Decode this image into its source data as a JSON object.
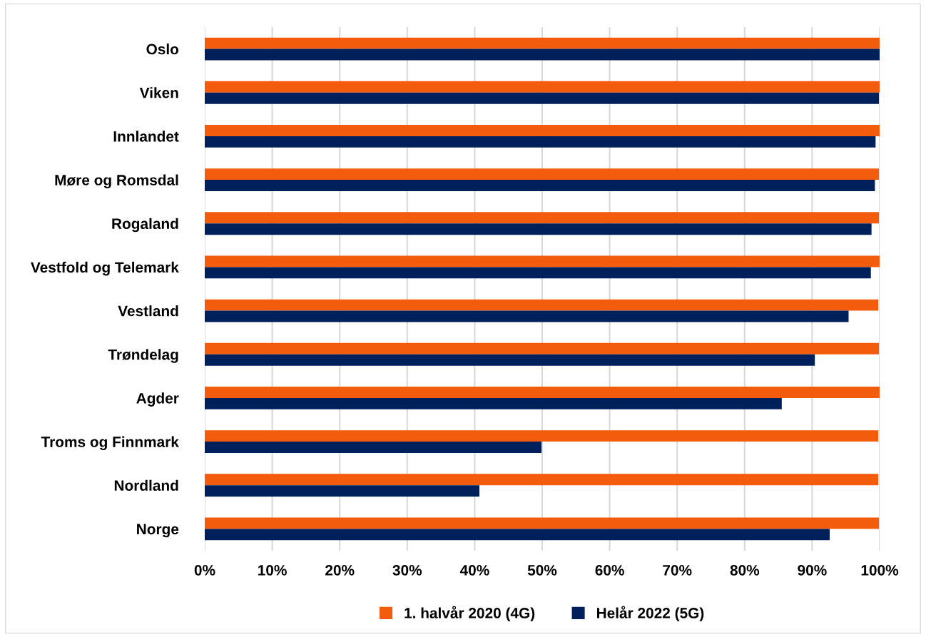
{
  "chart_data": {
    "type": "bar",
    "orientation": "horizontal",
    "categories": [
      "Oslo",
      "Viken",
      "Innlandet",
      "Møre og Romsdal",
      "Rogaland",
      "Vestfold og Telemark",
      "Vestland",
      "Trøndelag",
      "Agder",
      "Troms og Finnmark",
      "Nordland",
      "Norge"
    ],
    "series": [
      {
        "name": "1. halvår 2020 (4G)",
        "color": "#f25c0c",
        "values": [
          100,
          100,
          100,
          99.9,
          99.9,
          100,
          99.8,
          99.9,
          100,
          99.8,
          99.8,
          99.9
        ]
      },
      {
        "name": "Helår 2022 (5G)",
        "color": "#00205b",
        "values": [
          100,
          99.9,
          99.4,
          99.3,
          98.8,
          98.7,
          95.4,
          90.4,
          85.5,
          49.9,
          40.7,
          92.6
        ]
      }
    ],
    "xlim": [
      0,
      100
    ],
    "xticks": [
      {
        "value": 0,
        "label": "0%"
      },
      {
        "value": 10,
        "label": "10%"
      },
      {
        "value": 20,
        "label": "20%"
      },
      {
        "value": 30,
        "label": "30%"
      },
      {
        "value": 40,
        "label": "40%"
      },
      {
        "value": 50,
        "label": "50%"
      },
      {
        "value": 60,
        "label": "60%"
      },
      {
        "value": 70,
        "label": "70%"
      },
      {
        "value": 80,
        "label": "80%"
      },
      {
        "value": 90,
        "label": "90%"
      },
      {
        "value": 100,
        "label": "100%"
      }
    ],
    "grid": "x",
    "legend": "bottom"
  }
}
